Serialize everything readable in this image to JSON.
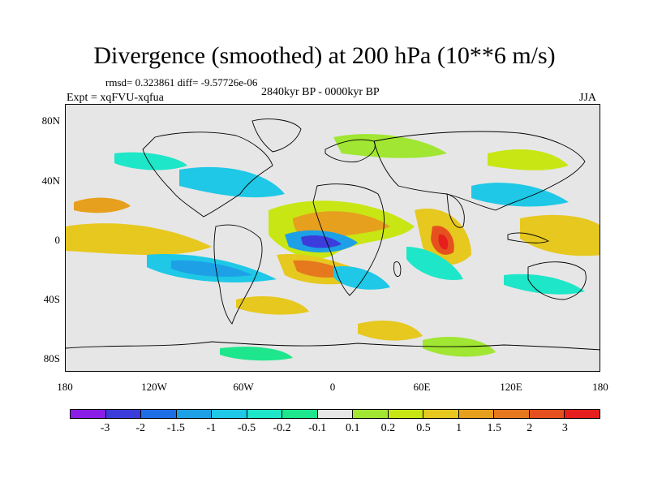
{
  "title": "Divergence (smoothed) at 200 hPa (10**6 m/s)",
  "stats": "rmsd= 0.323861 diff= -9.57726e-06",
  "period": "2840kyr BP - 0000kyr BP",
  "experiment": "Expt = xqFVU-xqfua",
  "season": "JJA",
  "axes": {
    "lat_labels": [
      "80N",
      "40N",
      "0",
      "40S",
      "80S"
    ],
    "lon_labels": [
      "180",
      "120W",
      "60W",
      "0",
      "60E",
      "120E",
      "180"
    ]
  },
  "colorbar": {
    "colors": [
      "#8b1ee6",
      "#3c3cdc",
      "#1e6ee6",
      "#1ea0e6",
      "#1ec8e6",
      "#1ee6c8",
      "#1ee68c",
      "#e6e6e6",
      "#a0e632",
      "#c8e614",
      "#e6c81e",
      "#e6a01e",
      "#e6781e",
      "#e6501e",
      "#e61e1e"
    ],
    "labels": [
      "-3",
      "-2",
      "-1.5",
      "-1",
      "-0.5",
      "-0.2",
      "-0.1",
      "0.1",
      "0.2",
      "0.5",
      "1",
      "1.5",
      "2",
      "3"
    ]
  }
}
